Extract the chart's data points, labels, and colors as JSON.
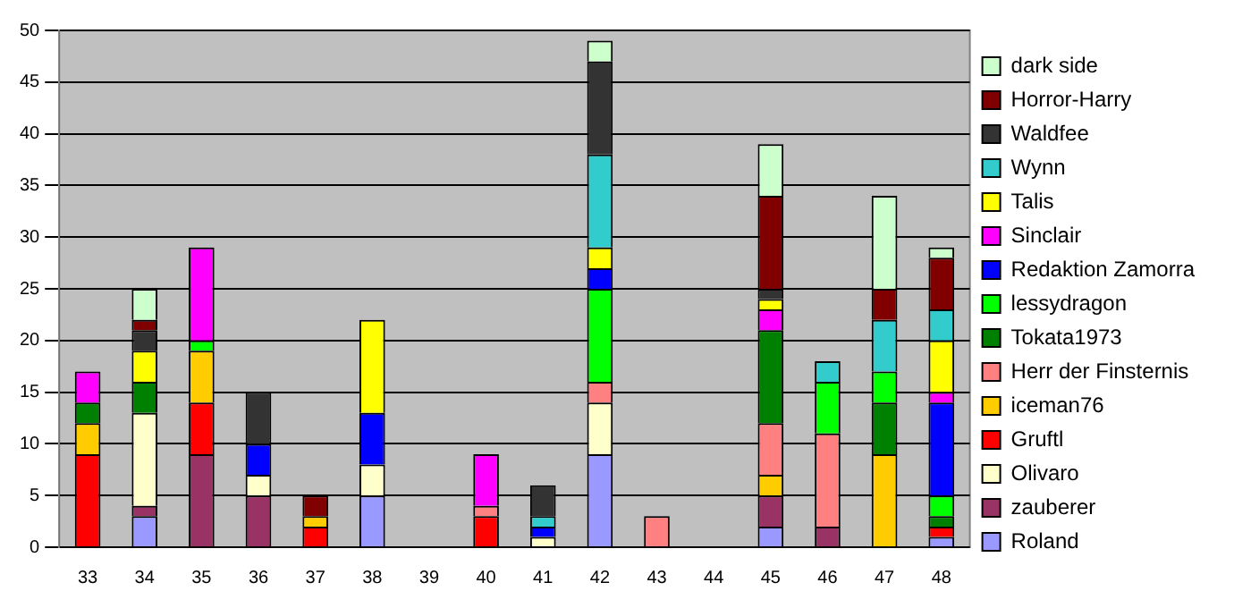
{
  "chart_data": {
    "type": "bar",
    "stacked": true,
    "categories": [
      "33",
      "34",
      "35",
      "36",
      "37",
      "38",
      "39",
      "40",
      "41",
      "42",
      "43",
      "44",
      "45",
      "46",
      "47",
      "48"
    ],
    "series": [
      {
        "name": "Roland",
        "color": "#9999ff",
        "values": [
          null,
          3,
          null,
          null,
          null,
          5,
          null,
          null,
          null,
          9,
          null,
          null,
          2,
          null,
          null,
          1
        ]
      },
      {
        "name": "zauberer",
        "color": "#993366",
        "values": [
          null,
          1,
          9,
          5,
          null,
          null,
          null,
          null,
          null,
          null,
          null,
          null,
          3,
          2,
          null,
          null
        ]
      },
      {
        "name": "Olivaro",
        "color": "#ffffcc",
        "values": [
          null,
          9,
          null,
          2,
          null,
          3,
          null,
          null,
          1,
          5,
          null,
          null,
          null,
          null,
          null,
          null
        ]
      },
      {
        "name": "Gruftl",
        "color": "#ff0000",
        "values": [
          9,
          null,
          5,
          null,
          2,
          null,
          null,
          3,
          null,
          null,
          null,
          null,
          null,
          null,
          null,
          1
        ]
      },
      {
        "name": "iceman76",
        "color": "#ffcc00",
        "values": [
          3,
          null,
          5,
          null,
          1,
          null,
          null,
          null,
          null,
          null,
          null,
          null,
          2,
          null,
          9,
          null
        ]
      },
      {
        "name": "Herr der Finsternis",
        "color": "#ff8080",
        "values": [
          null,
          null,
          null,
          null,
          null,
          null,
          null,
          1,
          null,
          2,
          3,
          null,
          5,
          9,
          null,
          null
        ]
      },
      {
        "name": "Tokata1973",
        "color": "#008000",
        "values": [
          2,
          3,
          null,
          null,
          null,
          null,
          null,
          null,
          null,
          null,
          null,
          null,
          9,
          null,
          5,
          1
        ]
      },
      {
        "name": "lessydragon",
        "color": "#00ff00",
        "values": [
          null,
          null,
          1,
          null,
          null,
          null,
          null,
          null,
          null,
          9,
          null,
          null,
          null,
          5,
          3,
          2
        ]
      },
      {
        "name": "Redaktion Zamorra",
        "color": "#0000ff",
        "values": [
          null,
          null,
          null,
          3,
          null,
          5,
          null,
          null,
          1,
          2,
          null,
          null,
          null,
          null,
          null,
          9
        ]
      },
      {
        "name": "Sinclair",
        "color": "#ff00ff",
        "values": [
          3,
          null,
          9,
          null,
          null,
          null,
          null,
          5,
          null,
          null,
          null,
          null,
          2,
          null,
          null,
          1
        ]
      },
      {
        "name": "Talis",
        "color": "#ffff00",
        "values": [
          null,
          3,
          null,
          null,
          null,
          9,
          null,
          null,
          null,
          2,
          null,
          null,
          1,
          null,
          null,
          5
        ]
      },
      {
        "name": "Wynn",
        "color": "#33cccc",
        "values": [
          null,
          null,
          null,
          null,
          null,
          null,
          null,
          null,
          1,
          9,
          null,
          null,
          null,
          2,
          5,
          3
        ]
      },
      {
        "name": "Waldfee",
        "color": "#333333",
        "values": [
          null,
          2,
          null,
          5,
          null,
          null,
          null,
          null,
          3,
          9,
          null,
          null,
          1,
          null,
          null,
          null
        ]
      },
      {
        "name": "Horror-Harry",
        "color": "#800000",
        "values": [
          null,
          1,
          null,
          null,
          2,
          null,
          null,
          null,
          null,
          null,
          null,
          null,
          9,
          null,
          3,
          5
        ]
      },
      {
        "name": "dark side",
        "color": "#ccffcc",
        "values": [
          null,
          3,
          null,
          null,
          null,
          null,
          null,
          null,
          null,
          2,
          null,
          null,
          5,
          null,
          9,
          1
        ]
      }
    ],
    "ylim": [
      0,
      50
    ],
    "yticks": [
      0,
      5,
      10,
      15,
      20,
      25,
      30,
      35,
      40,
      45,
      50
    ],
    "grid": "y",
    "legend": "right"
  }
}
